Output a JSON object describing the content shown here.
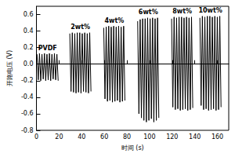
{
  "chart_data": {
    "type": "line",
    "x_label": "时间 (s)",
    "y_label": "开路电压 (V)",
    "annotations": [
      "PVDF",
      "2wt%",
      "4wt%",
      "6wt%",
      "8wt%",
      "10wt%"
    ],
    "x": [
      0.5,
      1.6,
      2.7,
      3.8,
      4.9,
      6.0,
      7.1,
      8.2,
      9.3,
      10.4,
      11.5,
      12.6,
      13.7,
      14.8,
      15.9,
      17.0,
      18.1,
      19.2,
      25,
      29.5,
      30.6,
      31.7,
      32.8,
      33.9,
      35.0,
      36.1,
      37.2,
      38.3,
      39.4,
      40.5,
      41.6,
      42.7,
      43.8,
      44.9,
      46.0,
      47.1,
      48.2,
      54,
      59.5,
      60.6,
      61.7,
      62.8,
      63.9,
      65.0,
      66.1,
      67.2,
      68.3,
      69.4,
      70.5,
      71.6,
      72.7,
      73.8,
      74.9,
      76.0,
      77.1,
      78.2,
      84,
      89.5,
      90.6,
      91.7,
      92.8,
      93.9,
      95.0,
      96.1,
      97.2,
      98.3,
      99.4,
      100.5,
      101.6,
      102.7,
      103.8,
      104.9,
      106.0,
      107.1,
      108.2,
      114,
      119.5,
      120.6,
      121.7,
      122.8,
      123.9,
      125.0,
      126.1,
      127.2,
      128.3,
      129.4,
      130.5,
      131.6,
      132.7,
      133.8,
      134.9,
      136.0,
      137.1,
      138.2,
      142,
      144.5,
      145.6,
      146.7,
      147.8,
      148.9,
      150.0,
      151.1,
      152.2,
      153.3,
      154.4,
      155.5,
      156.6,
      157.7,
      158.8,
      159.9,
      161.0,
      162.1,
      163.2
    ],
    "values": [
      0.12,
      -0.19,
      0.13,
      -0.2,
      0.12,
      -0.18,
      0.13,
      -0.2,
      0.12,
      -0.19,
      0.13,
      -0.2,
      0.12,
      -0.18,
      0.13,
      -0.19,
      0.12,
      -0.2,
      null,
      0.37,
      -0.33,
      0.38,
      -0.34,
      0.37,
      -0.35,
      0.38,
      -0.34,
      0.38,
      -0.35,
      0.37,
      -0.33,
      0.38,
      -0.34,
      0.37,
      -0.35,
      0.38,
      -0.33,
      null,
      0.44,
      -0.42,
      0.45,
      -0.45,
      0.46,
      -0.44,
      0.45,
      -0.46,
      0.46,
      -0.45,
      0.45,
      -0.44,
      0.46,
      -0.46,
      0.45,
      -0.45,
      0.46,
      -0.44,
      null,
      0.52,
      -0.6,
      0.54,
      -0.65,
      0.55,
      -0.68,
      0.55,
      -0.7,
      0.56,
      -0.68,
      0.55,
      -0.66,
      0.56,
      -0.7,
      0.55,
      -0.68,
      0.56,
      -0.65,
      null,
      0.55,
      -0.52,
      0.57,
      -0.55,
      0.56,
      -0.54,
      0.57,
      -0.56,
      0.57,
      -0.55,
      0.56,
      -0.54,
      0.57,
      -0.56,
      0.56,
      -0.55,
      0.57,
      -0.53,
      null,
      0.56,
      -0.5,
      0.58,
      -0.55,
      0.57,
      -0.54,
      0.58,
      -0.56,
      0.58,
      -0.55,
      0.57,
      -0.54,
      0.58,
      -0.56,
      0.57,
      -0.55,
      0.58,
      -0.52
    ],
    "color": "#000000",
    "xlim": [
      0,
      170
    ],
    "xticks": [
      0,
      20,
      40,
      60,
      80,
      100,
      120,
      140,
      160
    ],
    "ylim": [
      -0.8,
      0.7
    ],
    "yticks": [
      -0.8,
      -0.6,
      -0.4,
      -0.2,
      {
        "value": 0,
        "label": "0.0"
      },
      0.2,
      0.4,
      0.6
    ],
    "grid": false
  }
}
